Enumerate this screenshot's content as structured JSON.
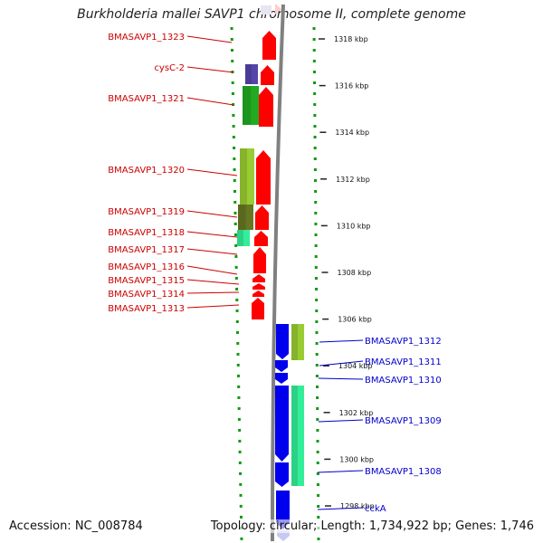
{
  "title": "Burkholderia mallei SAVP1 chromosome II, complete genome",
  "accession": "Accession: NC_008784",
  "topology": "Topology: circular; Length: 1,734,922 bp; Genes: 1,746",
  "scale": [
    {
      "kbp": 1318,
      "label": "1318 kbp"
    },
    {
      "kbp": 1316,
      "label": "1316 kbp"
    },
    {
      "kbp": 1314,
      "label": "1314 kbp"
    },
    {
      "kbp": 1312,
      "label": "1312 kbp"
    },
    {
      "kbp": 1310,
      "label": "1310 kbp"
    },
    {
      "kbp": 1308,
      "label": "1308 kbp"
    },
    {
      "kbp": 1306,
      "label": "1306 kbp"
    },
    {
      "kbp": 1304,
      "label": "1304 kbp"
    },
    {
      "kbp": 1302,
      "label": "1302 kbp"
    },
    {
      "kbp": 1300,
      "label": "1300 kbp"
    },
    {
      "kbp": 1298,
      "label": "1298 kbp"
    }
  ],
  "genes_reverse": [
    {
      "label": "BMASAVP1_1323",
      "kbp": 1318.6
    },
    {
      "label": "cysC-2",
      "kbp": 1317.2
    },
    {
      "label": "BMASAVP1_1321",
      "kbp": 1315.7
    },
    {
      "label": "BMASAVP1_1320",
      "kbp": 1312.2
    },
    {
      "label": "BMASAVP1_1319",
      "kbp": 1310.4
    },
    {
      "label": "BMASAVP1_1318",
      "kbp": 1309.6
    },
    {
      "label": "BMASAVP1_1317",
      "kbp": 1308.8
    },
    {
      "label": "BMASAVP1_1316",
      "kbp": 1308.1
    },
    {
      "label": "BMASAVP1_1315",
      "kbp": 1307.5
    },
    {
      "label": "BMASAVP1_1314",
      "kbp": 1306.9
    },
    {
      "label": "BMASAVP1_1313",
      "kbp": 1306.3
    }
  ],
  "genes_forward": [
    {
      "label": "BMASAVP1_1312",
      "kbp": 1304.9
    },
    {
      "label": "BMASAVP1_1311",
      "kbp": 1304.1
    },
    {
      "label": "BMASAVP1_1310",
      "kbp": 1303.4
    },
    {
      "label": "BMASAVP1_1309",
      "kbp": 1301.6
    },
    {
      "label": "BMASAVP1_1308",
      "kbp": 1299.5
    },
    {
      "label": "cckA",
      "kbp": 1297.8
    }
  ],
  "colors": {
    "reverse_gene": "#ff0000",
    "reverse_label": "#cc0000",
    "forward_gene": "#0000ee",
    "forward_label": "#0000cc",
    "cog_lime": "#99cc33",
    "cog_green": "#22aa22",
    "cog_olive": "#667722",
    "cog_aqua": "#33ee99",
    "cog_purple": "#5544aa",
    "backbone": "#808080",
    "dots": "#119911"
  }
}
